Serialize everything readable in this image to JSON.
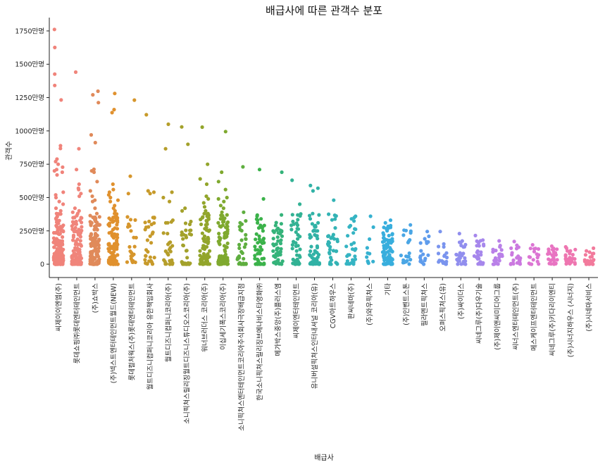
{
  "chart_data": {
    "type": "scatter",
    "subtype": "strip",
    "title": "배급사에 따른 관객수 분포",
    "xlabel": "배급사",
    "ylabel": "관객수",
    "ylim": [
      -100,
      1850
    ],
    "y_unit": "만명",
    "yticks": [
      0,
      250,
      500,
      750,
      1000,
      1250,
      1500,
      1750
    ],
    "ytick_labels": [
      "0",
      "250만명",
      "500만명",
      "750만명",
      "1000만명",
      "1250만명",
      "1500만명",
      "1750만명"
    ],
    "grid": false,
    "legend": "none",
    "categories": [
      {
        "name": "씨제이이엔엠(주)",
        "color": "#f0837a",
        "n": 160,
        "max": 1761,
        "outliers": [
          1626,
          1426,
          1341,
          1232,
          889,
          868,
          789,
          770,
          750,
          728,
          710,
          700,
          690,
          670,
          540,
          520,
          500,
          470,
          450,
          420,
          400,
          380
        ]
      },
      {
        "name": "롯데쇼핑㈜롯데엔터테인먼트",
        "color": "#f0857b",
        "n": 120,
        "max": 1441,
        "outliers": [
          866,
          710,
          600,
          570,
          560,
          530,
          510,
          420,
          400,
          390,
          380,
          350,
          320
        ]
      },
      {
        "name": "(주)쇼박스",
        "color": "#e08a5a",
        "n": 110,
        "max": 1298,
        "outliers": [
          1271,
          1212,
          970,
          912,
          712,
          700,
          690,
          620,
          550,
          510,
          480,
          470,
          420,
          380,
          330
        ]
      },
      {
        "name": "(주)넥스트엔터테인먼트월드(NEW)",
        "color": "#e0912e",
        "n": 110,
        "max": 1281,
        "outliers": [
          1160,
          1137,
          600,
          560,
          540,
          520,
          500,
          480,
          470,
          440,
          420,
          400,
          380,
          350
        ]
      },
      {
        "name": "롯데컬처웍스(주)롯데엔터테인먼트",
        "color": "#d6962c",
        "n": 18,
        "max": 1231,
        "outliers": [
          660,
          530,
          280,
          250,
          200,
          130
        ]
      },
      {
        "name": "월트디즈니컴퍼니코리아 유한책임회사",
        "color": "#c79a2a",
        "n": 25,
        "max": 1121,
        "outliers": [
          550,
          540,
          530,
          350,
          280,
          260,
          210,
          180
        ]
      },
      {
        "name": "월트디즈니컴퍼니코리아(주)",
        "color": "#b59e2a",
        "n": 22,
        "max": 1050,
        "outliers": [
          866,
          540,
          500,
          470,
          330,
          310,
          230,
          160
        ]
      },
      {
        "name": "소니픽쳐스릴리징월트디즈니스튜디오스코리아(주)",
        "color": "#a3a12b",
        "n": 30,
        "max": 1030,
        "outliers": [
          900,
          420,
          400,
          320,
          240,
          200,
          140
        ]
      },
      {
        "name": "워너브러더스 코리아(주)",
        "color": "#92a52b",
        "n": 80,
        "max": 1028,
        "outliers": [
          750,
          640,
          600,
          510,
          490,
          460,
          430,
          400,
          380,
          350,
          320,
          300
        ]
      },
      {
        "name": "이십세기폭스코리아(주)",
        "color": "#7fa92f",
        "n": 90,
        "max": 995,
        "outliers": [
          690,
          620,
          560,
          500,
          490,
          470,
          440,
          420,
          390,
          370,
          340,
          320,
          310
        ]
      },
      {
        "name": "소니픽쳐스엔터테인먼트코리아주식회사극장배급지점",
        "color": "#5eae3f",
        "n": 25,
        "max": 730,
        "outliers": [
          390,
          300,
          220,
          180,
          150,
          120
        ]
      },
      {
        "name": "한국소니픽쳐스릴리징브에나비스타영화㈜",
        "color": "#3bb24a",
        "n": 45,
        "max": 710,
        "outliers": [
          490,
          360,
          340,
          310,
          280,
          250,
          210,
          170
        ]
      },
      {
        "name": "메가박스중앙(주)플러스엠",
        "color": "#35b37a",
        "n": 40,
        "max": 690,
        "outliers": [
          370,
          290,
          250,
          210,
          180,
          150,
          120
        ]
      },
      {
        "name": "씨제이엔터테인먼트",
        "color": "#32b294",
        "n": 40,
        "max": 630,
        "outliers": [
          450,
          320,
          300,
          260,
          220,
          190,
          160
        ]
      },
      {
        "name": "유니버설픽쳐스인터내셔널 코리아(유)",
        "color": "#31b2a6",
        "n": 50,
        "max": 590,
        "outliers": [
          570,
          550,
          380,
          370,
          340,
          310,
          290,
          250,
          220
        ]
      },
      {
        "name": "CGV아트하우스",
        "color": "#33b3b5",
        "n": 30,
        "max": 480,
        "outliers": [
          190,
          160,
          130,
          110
        ]
      },
      {
        "name": "판씨네마(주)",
        "color": "#35b4c3",
        "n": 25,
        "max": 360,
        "outliers": [
          350,
          340,
          70,
          60
        ]
      },
      {
        "name": "(주)와우픽쳐스",
        "color": "#36b1d0",
        "n": 8,
        "max": 360,
        "outliers": [
          20,
          15
        ]
      },
      {
        "name": "기타",
        "color": "#38aedd",
        "n": 80,
        "max": 330,
        "outliers": [
          310,
          220,
          190,
          170,
          120,
          100,
          95,
          90
        ]
      },
      {
        "name": "(주)인벤트스톤",
        "color": "#4aa6e5",
        "n": 20,
        "max": 295,
        "outliers": [
          30,
          25
        ]
      },
      {
        "name": "필라멘트픽쳐스",
        "color": "#5f9cec",
        "n": 15,
        "max": 245,
        "outliers": [
          60,
          50
        ]
      },
      {
        "name": "오퍼스픽쳐스(유)",
        "color": "#7a94ee",
        "n": 15,
        "max": 245,
        "outliers": [
          80,
          60,
          50
        ]
      },
      {
        "name": "(주)싸이더스",
        "color": "#918eee",
        "n": 25,
        "max": 230,
        "outliers": [
          70,
          65,
          60
        ]
      },
      {
        "name": "씨네그루(주)다우기술",
        "color": "#a687ec",
        "n": 25,
        "max": 215,
        "outliers": [
          90,
          70,
          60
        ]
      },
      {
        "name": "(주)제이앤씨미디어그룹",
        "color": "#b980e8",
        "n": 20,
        "max": 175,
        "outliers": [
          60,
          50
        ]
      },
      {
        "name": "씨너스엔터테인먼트(주)",
        "color": "#cb79e0",
        "n": 20,
        "max": 170,
        "outliers": [
          120,
          60
        ]
      },
      {
        "name": "메스케이프엔터테인먼트",
        "color": "#dc75d3",
        "n": 15,
        "max": 145,
        "outliers": [
          50
        ]
      },
      {
        "name": "씨네그루(주)키다리이엔티",
        "color": "#e874c2",
        "n": 25,
        "max": 135,
        "outliers": [
          110,
          90,
          80,
          70
        ]
      },
      {
        "name": "(주)시너지하우스 (시너지)",
        "color": "#ee76b0",
        "n": 25,
        "max": 130,
        "outliers": [
          120,
          110,
          100,
          80
        ]
      },
      {
        "name": "(주)시네마서비스",
        "color": "#f27a9c",
        "n": 22,
        "max": 120,
        "outliers": [
          100,
          90,
          80,
          70
        ]
      }
    ]
  }
}
